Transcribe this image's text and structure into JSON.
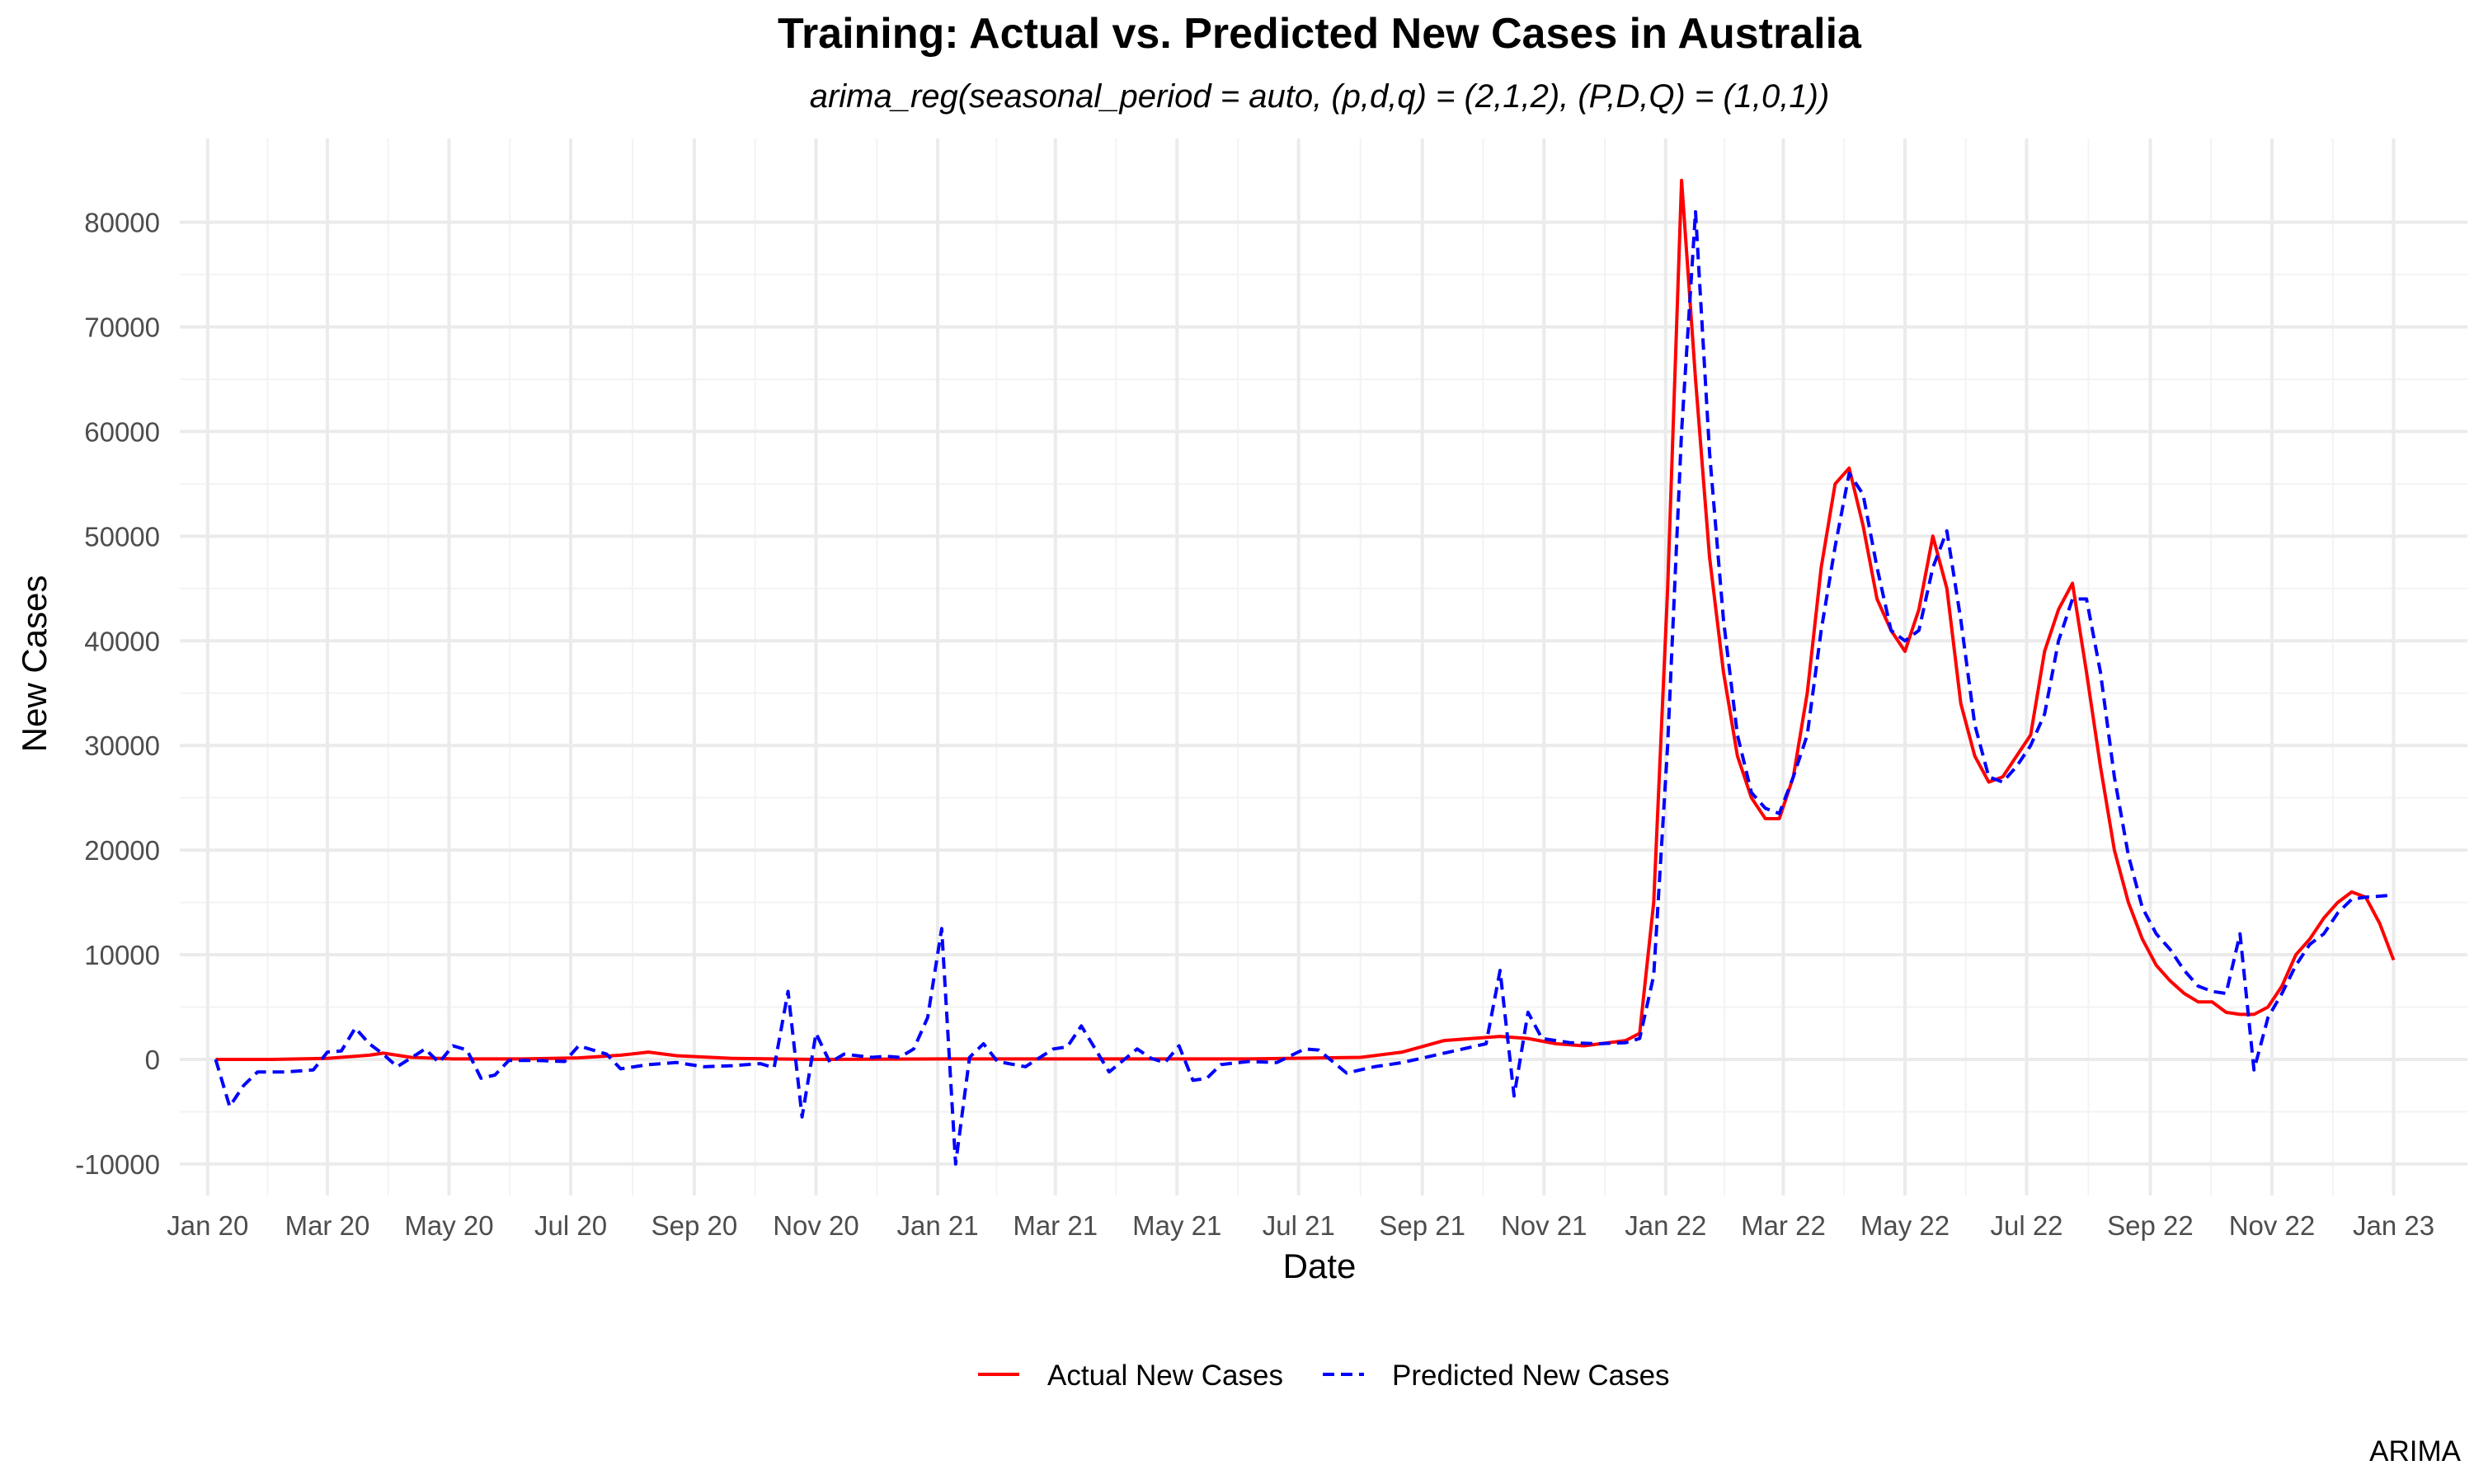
{
  "chart_data": {
    "type": "line",
    "title": "Training: Actual vs. Predicted New Cases in Australia",
    "subtitle": "arima_reg(seasonal_period = auto, (p,d,q) = (2,1,2), (P,D,Q) = (1,0,1))",
    "xlabel": "Date",
    "ylabel": "New Cases",
    "caption": "ARIMA",
    "x_ticks": [
      "Jan 20",
      "Mar 20",
      "May 20",
      "Jul 20",
      "Sep 20",
      "Nov 20",
      "Jan 21",
      "Mar 21",
      "May 21",
      "Jul 21",
      "Sep 21",
      "Nov 21",
      "Jan 22",
      "Mar 22",
      "May 22",
      "Jul 22",
      "Sep 22",
      "Nov 22",
      "Jan 23"
    ],
    "x_tick_dates": [
      "2020-01-01",
      "2020-03-01",
      "2020-05-01",
      "2020-07-01",
      "2020-09-01",
      "2020-11-01",
      "2021-01-01",
      "2021-03-01",
      "2021-05-01",
      "2021-07-01",
      "2021-09-01",
      "2021-11-01",
      "2022-01-01",
      "2022-03-01",
      "2022-05-01",
      "2022-07-01",
      "2022-09-01",
      "2022-11-01",
      "2023-01-01"
    ],
    "y_ticks": [
      -10000,
      0,
      10000,
      20000,
      30000,
      40000,
      50000,
      60000,
      70000,
      80000
    ],
    "xlim": [
      "2019-12-18",
      "2023-02-07"
    ],
    "ylim": [
      -13000,
      88000
    ],
    "grid": true,
    "legend_position": "bottom",
    "series": [
      {
        "name": "Actual New Cases",
        "color": "#ff0000",
        "line_style": "solid",
        "points": [
          [
            "2020-01-05",
            0
          ],
          [
            "2020-02-02",
            0
          ],
          [
            "2020-03-01",
            100
          ],
          [
            "2020-03-22",
            400
          ],
          [
            "2020-03-29",
            600
          ],
          [
            "2020-04-12",
            200
          ],
          [
            "2020-05-03",
            50
          ],
          [
            "2020-06-07",
            50
          ],
          [
            "2020-07-05",
            150
          ],
          [
            "2020-07-26",
            400
          ],
          [
            "2020-08-09",
            700
          ],
          [
            "2020-08-23",
            350
          ],
          [
            "2020-09-20",
            100
          ],
          [
            "2020-11-01",
            0
          ],
          [
            "2021-01-03",
            50
          ],
          [
            "2021-06-06",
            50
          ],
          [
            "2021-08-01",
            200
          ],
          [
            "2021-08-22",
            700
          ],
          [
            "2021-09-12",
            1800
          ],
          [
            "2021-09-26",
            2000
          ],
          [
            "2021-10-10",
            2200
          ],
          [
            "2021-10-24",
            2000
          ],
          [
            "2021-11-07",
            1500
          ],
          [
            "2021-11-21",
            1300
          ],
          [
            "2021-12-12",
            1800
          ],
          [
            "2021-12-19",
            2500
          ],
          [
            "2021-12-26",
            15000
          ],
          [
            "2022-01-02",
            45000
          ],
          [
            "2022-01-09",
            84000
          ],
          [
            "2022-01-16",
            65000
          ],
          [
            "2022-01-23",
            48000
          ],
          [
            "2022-01-30",
            37000
          ],
          [
            "2022-02-06",
            29000
          ],
          [
            "2022-02-13",
            25000
          ],
          [
            "2022-02-20",
            23000
          ],
          [
            "2022-02-27",
            23000
          ],
          [
            "2022-03-06",
            27000
          ],
          [
            "2022-03-13",
            35000
          ],
          [
            "2022-03-20",
            47000
          ],
          [
            "2022-03-27",
            55000
          ],
          [
            "2022-04-03",
            56500
          ],
          [
            "2022-04-10",
            51000
          ],
          [
            "2022-04-17",
            44000
          ],
          [
            "2022-04-24",
            41000
          ],
          [
            "2022-05-01",
            39000
          ],
          [
            "2022-05-08",
            43000
          ],
          [
            "2022-05-15",
            50000
          ],
          [
            "2022-05-22",
            45000
          ],
          [
            "2022-05-29",
            34000
          ],
          [
            "2022-06-05",
            29000
          ],
          [
            "2022-06-12",
            26500
          ],
          [
            "2022-06-19",
            27000
          ],
          [
            "2022-06-26",
            29000
          ],
          [
            "2022-07-03",
            31000
          ],
          [
            "2022-07-10",
            39000
          ],
          [
            "2022-07-17",
            43000
          ],
          [
            "2022-07-24",
            45500
          ],
          [
            "2022-07-31",
            37000
          ],
          [
            "2022-08-07",
            28000
          ],
          [
            "2022-08-14",
            20000
          ],
          [
            "2022-08-21",
            15000
          ],
          [
            "2022-08-28",
            11500
          ],
          [
            "2022-09-04",
            9000
          ],
          [
            "2022-09-11",
            7500
          ],
          [
            "2022-09-18",
            6300
          ],
          [
            "2022-09-25",
            5500
          ],
          [
            "2022-10-02",
            5500
          ],
          [
            "2022-10-09",
            4500
          ],
          [
            "2022-10-16",
            4300
          ],
          [
            "2022-10-23",
            4300
          ],
          [
            "2022-10-30",
            5000
          ],
          [
            "2022-11-06",
            7000
          ],
          [
            "2022-11-13",
            10000
          ],
          [
            "2022-11-20",
            11500
          ],
          [
            "2022-11-27",
            13500
          ],
          [
            "2022-12-04",
            15000
          ],
          [
            "2022-12-11",
            16000
          ],
          [
            "2022-12-18",
            15500
          ],
          [
            "2022-12-25",
            13000
          ],
          [
            "2023-01-01",
            9500
          ]
        ]
      },
      {
        "name": "Predicted New Cases",
        "color": "#0000ff",
        "line_style": "dashed",
        "points": [
          [
            "2020-01-05",
            0
          ],
          [
            "2020-01-12",
            -4500
          ],
          [
            "2020-01-19",
            -2500
          ],
          [
            "2020-01-26",
            -1200
          ],
          [
            "2020-02-09",
            -1200
          ],
          [
            "2020-02-23",
            -1000
          ],
          [
            "2020-03-01",
            700
          ],
          [
            "2020-03-08",
            800
          ],
          [
            "2020-03-15",
            3000
          ],
          [
            "2020-03-22",
            1500
          ],
          [
            "2020-03-29",
            500
          ],
          [
            "2020-04-05",
            -700
          ],
          [
            "2020-04-19",
            1000
          ],
          [
            "2020-04-26",
            -300
          ],
          [
            "2020-05-03",
            1300
          ],
          [
            "2020-05-10",
            900
          ],
          [
            "2020-05-17",
            -1800
          ],
          [
            "2020-05-24",
            -1500
          ],
          [
            "2020-05-31",
            -100
          ],
          [
            "2020-06-14",
            -100
          ],
          [
            "2020-06-28",
            -200
          ],
          [
            "2020-07-05",
            1300
          ],
          [
            "2020-07-19",
            500
          ],
          [
            "2020-07-26",
            -900
          ],
          [
            "2020-08-09",
            -500
          ],
          [
            "2020-08-23",
            -300
          ],
          [
            "2020-09-06",
            -700
          ],
          [
            "2020-09-20",
            -600
          ],
          [
            "2020-10-04",
            -400
          ],
          [
            "2020-10-11",
            -800
          ],
          [
            "2020-10-18",
            6500
          ],
          [
            "2020-10-25",
            -5500
          ],
          [
            "2020-11-01",
            2500
          ],
          [
            "2020-11-08",
            -300
          ],
          [
            "2020-11-15",
            500
          ],
          [
            "2020-11-29",
            200
          ],
          [
            "2020-12-06",
            300
          ],
          [
            "2020-12-13",
            200
          ],
          [
            "2020-12-20",
            1000
          ],
          [
            "2020-12-27",
            4000
          ],
          [
            "2021-01-03",
            12500
          ],
          [
            "2021-01-10",
            -10000
          ],
          [
            "2021-01-17",
            200
          ],
          [
            "2021-01-24",
            1500
          ],
          [
            "2021-01-31",
            -200
          ],
          [
            "2021-02-14",
            -700
          ],
          [
            "2021-02-28",
            1000
          ],
          [
            "2021-03-07",
            1200
          ],
          [
            "2021-03-14",
            3200
          ],
          [
            "2021-03-21",
            1000
          ],
          [
            "2021-03-28",
            -1200
          ],
          [
            "2021-04-11",
            1000
          ],
          [
            "2021-04-18",
            100
          ],
          [
            "2021-04-25",
            -300
          ],
          [
            "2021-05-02",
            1300
          ],
          [
            "2021-05-09",
            -2000
          ],
          [
            "2021-05-16",
            -1800
          ],
          [
            "2021-05-23",
            -500
          ],
          [
            "2021-06-06",
            -200
          ],
          [
            "2021-06-20",
            -300
          ],
          [
            "2021-07-04",
            1000
          ],
          [
            "2021-07-11",
            900
          ],
          [
            "2021-07-25",
            -1300
          ],
          [
            "2021-08-08",
            -700
          ],
          [
            "2021-08-22",
            -300
          ],
          [
            "2021-09-05",
            300
          ],
          [
            "2021-09-19",
            900
          ],
          [
            "2021-10-03",
            1500
          ],
          [
            "2021-10-10",
            8500
          ],
          [
            "2021-10-17",
            -3500
          ],
          [
            "2021-10-24",
            4500
          ],
          [
            "2021-10-31",
            2000
          ],
          [
            "2021-11-14",
            1600
          ],
          [
            "2021-11-28",
            1500
          ],
          [
            "2021-12-12",
            1600
          ],
          [
            "2021-12-19",
            2000
          ],
          [
            "2021-12-26",
            8000
          ],
          [
            "2022-01-02",
            30000
          ],
          [
            "2022-01-09",
            60000
          ],
          [
            "2022-01-16",
            81000
          ],
          [
            "2022-01-23",
            58000
          ],
          [
            "2022-01-30",
            42000
          ],
          [
            "2022-02-06",
            31000
          ],
          [
            "2022-02-13",
            25500
          ],
          [
            "2022-02-20",
            24000
          ],
          [
            "2022-02-27",
            23500
          ],
          [
            "2022-03-06",
            27000
          ],
          [
            "2022-03-13",
            31000
          ],
          [
            "2022-03-20",
            41000
          ],
          [
            "2022-03-27",
            49000
          ],
          [
            "2022-04-03",
            56000
          ],
          [
            "2022-04-10",
            54000
          ],
          [
            "2022-04-17",
            47000
          ],
          [
            "2022-04-24",
            41000
          ],
          [
            "2022-05-01",
            40000
          ],
          [
            "2022-05-08",
            41000
          ],
          [
            "2022-05-15",
            47000
          ],
          [
            "2022-05-22",
            50500
          ],
          [
            "2022-05-29",
            42000
          ],
          [
            "2022-06-05",
            32000
          ],
          [
            "2022-06-12",
            27000
          ],
          [
            "2022-06-19",
            26500
          ],
          [
            "2022-06-26",
            28000
          ],
          [
            "2022-07-03",
            30000
          ],
          [
            "2022-07-10",
            33000
          ],
          [
            "2022-07-17",
            40000
          ],
          [
            "2022-07-24",
            44000
          ],
          [
            "2022-07-31",
            44000
          ],
          [
            "2022-08-07",
            37000
          ],
          [
            "2022-08-14",
            27000
          ],
          [
            "2022-08-21",
            19500
          ],
          [
            "2022-08-28",
            14500
          ],
          [
            "2022-09-04",
            12000
          ],
          [
            "2022-09-11",
            10500
          ],
          [
            "2022-09-18",
            8500
          ],
          [
            "2022-09-25",
            7000
          ],
          [
            "2022-10-02",
            6500
          ],
          [
            "2022-10-09",
            6300
          ],
          [
            "2022-10-16",
            12000
          ],
          [
            "2022-10-23",
            -1000
          ],
          [
            "2022-10-30",
            4000
          ],
          [
            "2022-11-06",
            6300
          ],
          [
            "2022-11-13",
            9000
          ],
          [
            "2022-11-20",
            11000
          ],
          [
            "2022-11-27",
            12000
          ],
          [
            "2022-12-04",
            14000
          ],
          [
            "2022-12-11",
            15300
          ],
          [
            "2022-12-18",
            15500
          ],
          [
            "2022-12-25",
            15600
          ],
          [
            "2023-01-01",
            15700
          ]
        ]
      }
    ]
  }
}
